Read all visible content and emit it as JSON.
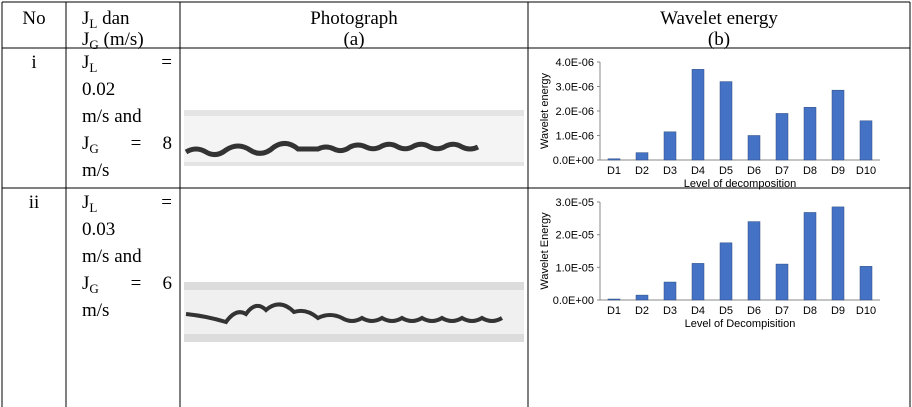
{
  "header": {
    "no": "No",
    "jl": [
      "J",
      "L",
      " dan"
    ],
    "jg": [
      "J",
      "G",
      " (m/s)"
    ],
    "photo": [
      "Photograph",
      "(a)"
    ],
    "wavelet": [
      "Wavelet energy",
      "(b)"
    ]
  },
  "rows": [
    {
      "no": "i",
      "jl": [
        "J",
        "L",
        "=",
        "0.02",
        "m/s and"
      ],
      "jg": [
        "J",
        "G",
        "=",
        "8",
        "m/s"
      ]
    },
    {
      "no": "ii",
      "jl": [
        "J",
        "L",
        "=",
        "0.03",
        "m/s and"
      ],
      "jg": [
        "J",
        "G",
        "=",
        "6",
        "m/s"
      ]
    }
  ],
  "chart_data": [
    {
      "type": "bar",
      "y_label": "Wavelet energy",
      "x_label": "Level of decomposition",
      "color": "#4472c4",
      "categories": [
        "D1",
        "D2",
        "D3",
        "D4",
        "D5",
        "D6",
        "D7",
        "D8",
        "D9",
        "D10"
      ],
      "values": [
        5e-08,
        3e-07,
        1.15e-06,
        3.7e-06,
        3.2e-06,
        1e-06,
        1.9e-06,
        2.15e-06,
        2.85e-06,
        1.6e-06
      ],
      "ylim": [
        0,
        4e-06
      ],
      "yticks": [
        {
          "value": 0,
          "label": "0.0E+00"
        },
        {
          "value": 1e-06,
          "label": "1.0E-06"
        },
        {
          "value": 2e-06,
          "label": "2.0E-06"
        },
        {
          "value": 3e-06,
          "label": "3.0E-06"
        },
        {
          "value": 4e-06,
          "label": "4.0E-06"
        }
      ]
    },
    {
      "type": "bar",
      "y_label": "Wavelet Energy",
      "x_label": "Level of Decompisition",
      "color": "#4472c4",
      "categories": [
        "D1",
        "D2",
        "D3",
        "D4",
        "D5",
        "D6",
        "D7",
        "D8",
        "D9",
        "D10"
      ],
      "values": [
        3e-07,
        1.5e-06,
        5.5e-06,
        1.12e-05,
        1.75e-05,
        2.4e-05,
        1.1e-05,
        2.68e-05,
        2.85e-05,
        1.03e-05
      ],
      "ylim": [
        0,
        3e-05
      ],
      "yticks": [
        {
          "value": 0,
          "label": "0.0E+00"
        },
        {
          "value": 1e-05,
          "label": "1.0E-05"
        },
        {
          "value": 2e-05,
          "label": "2.0E-05"
        },
        {
          "value": 3e-05,
          "label": "3.0E-05"
        }
      ]
    }
  ]
}
